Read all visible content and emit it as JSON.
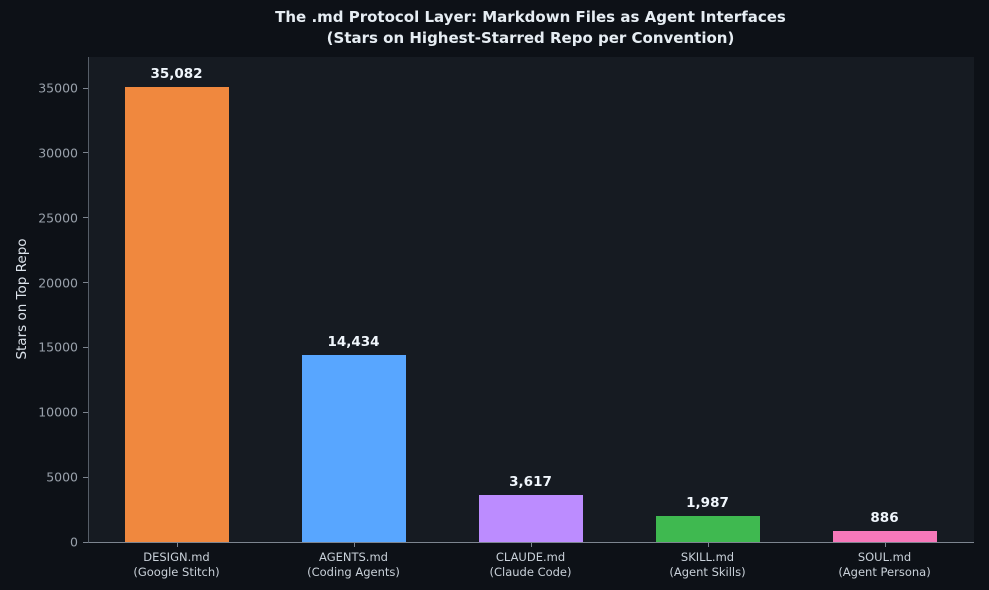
{
  "title": {
    "line1": "The .md Protocol Layer: Markdown Files as Agent Interfaces",
    "line2": "(Stars on Highest-Starred Repo per Convention)"
  },
  "chart_data": {
    "type": "bar",
    "title": "The .md Protocol Layer: Markdown Files as Agent Interfaces (Stars on Highest-Starred Repo per Convention)",
    "categories": [
      {
        "name": "DESIGN.md",
        "sub": "(Google Stitch)"
      },
      {
        "name": "AGENTS.md",
        "sub": "(Coding Agents)"
      },
      {
        "name": "CLAUDE.md",
        "sub": "(Claude Code)"
      },
      {
        "name": "SKILL.md",
        "sub": "(Agent Skills)"
      },
      {
        "name": "SOUL.md",
        "sub": "(Agent Persona)"
      }
    ],
    "values": [
      35082,
      14434,
      3617,
      1987,
      886
    ],
    "value_labels": [
      "35,082",
      "14,434",
      "3,617",
      "1,987",
      "886"
    ],
    "bar_colors": [
      "#f0883e",
      "#58a6ff",
      "#bc8cff",
      "#3fb950",
      "#f778ba"
    ],
    "xlabel": "",
    "ylabel": "Stars on Top Repo",
    "yticks": [
      0,
      5000,
      10000,
      15000,
      20000,
      25000,
      30000,
      35000
    ],
    "ytick_labels": [
      "0",
      "5000",
      "10000",
      "15000",
      "20000",
      "25000",
      "30000",
      "35000"
    ],
    "ylim": [
      0,
      37400
    ],
    "grid": false,
    "legend": null,
    "style": {
      "figure_bg": "#0d1117",
      "axes_bg": "#161b22",
      "title_color": "#e6edf3",
      "value_label_color": "#f0f6fc",
      "ytick_color": "#99a1ab",
      "xtick_color": "#c9d1d9",
      "spine_color": "#7d8590"
    }
  }
}
